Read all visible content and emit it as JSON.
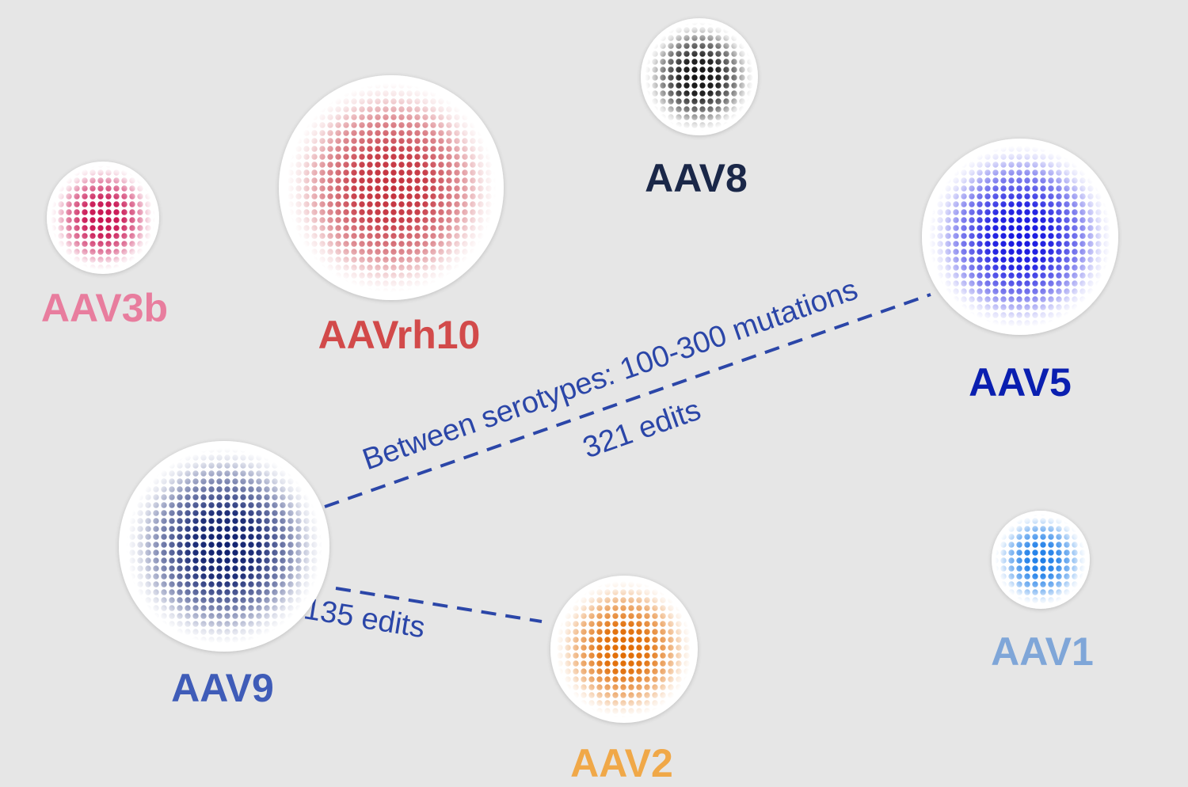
{
  "serotypes": [
    {
      "id": "aav3b",
      "label": "AAV3b",
      "color": "#c8104f",
      "label_color": "#e87d9e"
    },
    {
      "id": "aavrh10",
      "label": "AAVrh10",
      "color": "#c4303c",
      "label_color": "#d24a4a"
    },
    {
      "id": "aav8",
      "label": "AAV8",
      "color": "#111111",
      "label_color": "#1a2748"
    },
    {
      "id": "aav5",
      "label": "AAV5",
      "color": "#1515e0",
      "label_color": "#0a1fb0"
    },
    {
      "id": "aav9",
      "label": "AAV9",
      "color": "#0d1f6e",
      "label_color": "#3f5cb8"
    },
    {
      "id": "aav2",
      "label": "AAV2",
      "color": "#e06a00",
      "label_color": "#f0a848"
    },
    {
      "id": "aav1",
      "label": "AAV1",
      "color": "#1e7ee8",
      "label_color": "#7fa6d8"
    }
  ],
  "edges": [
    {
      "from": "aav9",
      "to": "aav5",
      "label_above": "Between serotypes: 100-300 mutations",
      "label_below": "321 edits",
      "color": "#2b46a8"
    },
    {
      "from": "aav9",
      "to": "aav2",
      "label_below": "135 edits",
      "color": "#2b46a8"
    }
  ]
}
